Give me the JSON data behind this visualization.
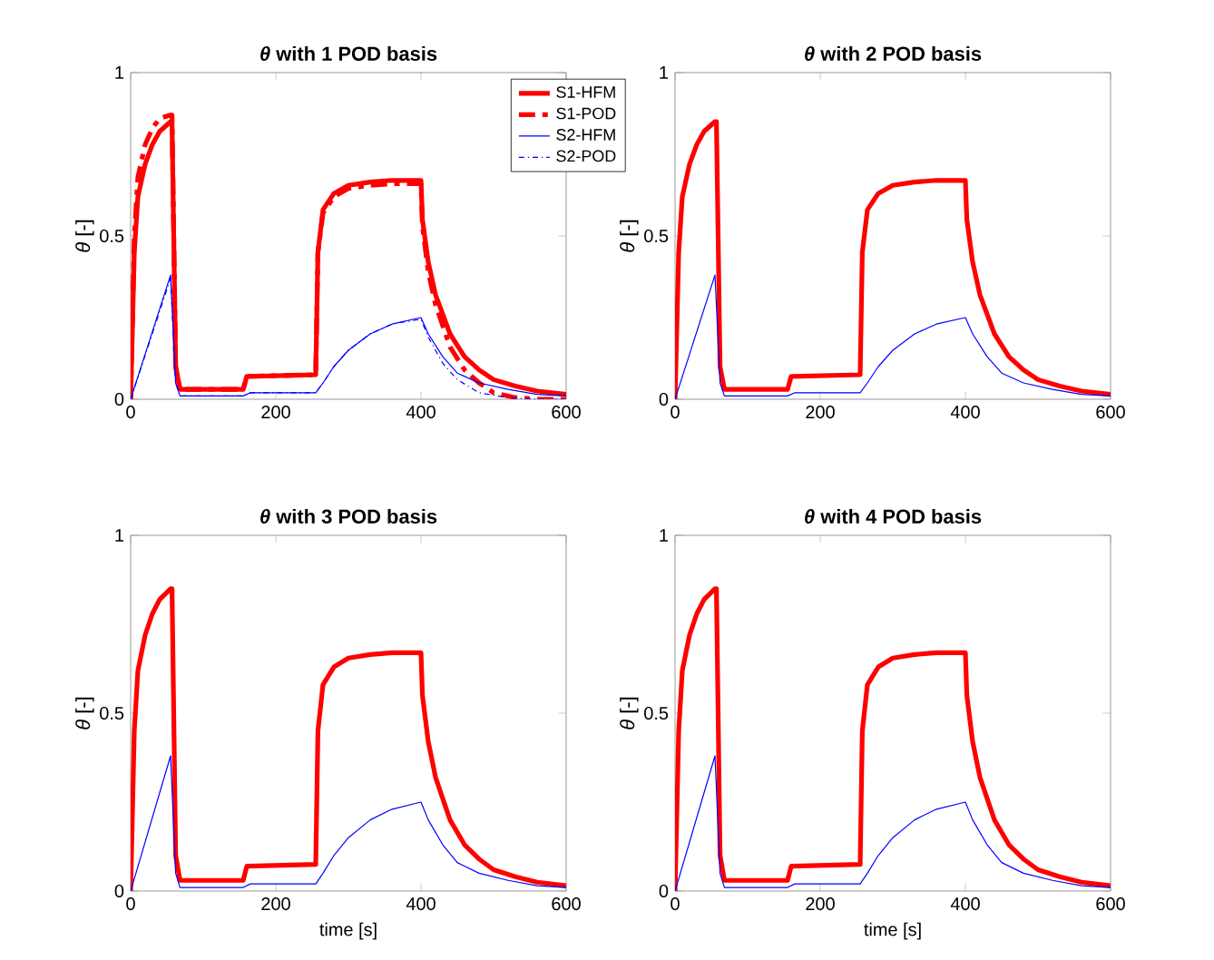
{
  "chart_data": [
    {
      "type": "line",
      "title": "*θ* with 1 POD basis",
      "ylabel": "*θ* [-]",
      "xlim": [
        0,
        600
      ],
      "ylim": [
        0,
        1
      ],
      "xticks": [
        0,
        200,
        400,
        600
      ],
      "yticks": [
        0,
        0.5,
        1
      ],
      "legend": "top right",
      "grid": false,
      "series": [
        {
          "name": "S1-HFM",
          "color": "#ff0000",
          "line_style": "solid",
          "x": [
            0,
            5,
            10,
            20,
            30,
            40,
            55,
            57,
            62,
            68,
            155,
            160,
            255,
            258,
            265,
            280,
            300,
            330,
            360,
            400,
            402,
            410,
            420,
            440,
            460,
            480,
            500,
            530,
            560,
            600
          ],
          "values": [
            0,
            0.45,
            0.62,
            0.72,
            0.78,
            0.82,
            0.85,
            0.85,
            0.1,
            0.03,
            0.03,
            0.07,
            0.075,
            0.45,
            0.58,
            0.63,
            0.655,
            0.665,
            0.67,
            0.67,
            0.55,
            0.42,
            0.32,
            0.2,
            0.13,
            0.09,
            0.06,
            0.04,
            0.025,
            0.015
          ]
        },
        {
          "name": "S1-POD",
          "color": "#ff0000",
          "line_style": "dashed",
          "x": [
            0,
            5,
            10,
            20,
            30,
            40,
            55,
            57,
            62,
            68,
            155,
            160,
            255,
            258,
            265,
            280,
            300,
            330,
            360,
            400,
            402,
            410,
            420,
            440,
            460,
            480,
            500,
            530,
            560,
            600
          ],
          "values": [
            0,
            0.5,
            0.68,
            0.78,
            0.83,
            0.86,
            0.87,
            0.87,
            0.1,
            0.03,
            0.03,
            0.07,
            0.075,
            0.45,
            0.57,
            0.62,
            0.645,
            0.655,
            0.66,
            0.66,
            0.53,
            0.39,
            0.29,
            0.16,
            0.09,
            0.05,
            0.02,
            0.005,
            0,
            0
          ]
        },
        {
          "name": "S2-HFM",
          "color": "#0000ff",
          "line_style": "solid",
          "x": [
            0,
            55,
            62,
            68,
            155,
            165,
            255,
            265,
            280,
            300,
            330,
            360,
            400,
            410,
            430,
            450,
            480,
            520,
            560,
            600
          ],
          "values": [
            0,
            0.38,
            0.05,
            0.01,
            0.01,
            0.02,
            0.02,
            0.05,
            0.1,
            0.15,
            0.2,
            0.23,
            0.25,
            0.2,
            0.13,
            0.08,
            0.05,
            0.03,
            0.015,
            0.01
          ]
        },
        {
          "name": "S2-POD",
          "color": "#0000ff",
          "line_style": "dashed",
          "x": [
            0,
            55,
            62,
            68,
            155,
            165,
            255,
            265,
            280,
            300,
            330,
            360,
            400,
            410,
            430,
            450,
            480,
            520,
            560,
            600
          ],
          "values": [
            0,
            0.37,
            0.05,
            0.01,
            0.01,
            0.02,
            0.02,
            0.05,
            0.1,
            0.15,
            0.2,
            0.23,
            0.245,
            0.19,
            0.11,
            0.06,
            0.02,
            0.005,
            0,
            0
          ]
        }
      ]
    },
    {
      "type": "line",
      "title": "*θ* with 2 POD basis",
      "ylabel": "*θ* [-]",
      "xlim": [
        0,
        600
      ],
      "ylim": [
        0,
        1
      ],
      "xticks": [
        0,
        200,
        400,
        600
      ],
      "yticks": [
        0,
        0.5,
        1
      ],
      "grid": false,
      "series": [
        {
          "color": "#ff0000",
          "line_style": "solid",
          "x": [
            0,
            5,
            10,
            20,
            30,
            40,
            55,
            57,
            62,
            68,
            155,
            160,
            255,
            258,
            265,
            280,
            300,
            330,
            360,
            400,
            402,
            410,
            420,
            440,
            460,
            480,
            500,
            530,
            560,
            600
          ],
          "values": [
            0,
            0.45,
            0.62,
            0.72,
            0.78,
            0.82,
            0.85,
            0.85,
            0.1,
            0.03,
            0.03,
            0.07,
            0.075,
            0.45,
            0.58,
            0.63,
            0.655,
            0.665,
            0.67,
            0.67,
            0.55,
            0.42,
            0.32,
            0.2,
            0.13,
            0.09,
            0.06,
            0.04,
            0.025,
            0.015
          ]
        },
        {
          "color": "#0000ff",
          "line_style": "solid",
          "x": [
            0,
            55,
            62,
            68,
            155,
            165,
            255,
            265,
            280,
            300,
            330,
            360,
            400,
            410,
            430,
            450,
            480,
            520,
            560,
            600
          ],
          "values": [
            0,
            0.38,
            0.05,
            0.01,
            0.01,
            0.02,
            0.02,
            0.05,
            0.1,
            0.15,
            0.2,
            0.23,
            0.25,
            0.2,
            0.13,
            0.08,
            0.05,
            0.03,
            0.015,
            0.01
          ]
        }
      ]
    },
    {
      "type": "line",
      "title": "*θ* with 3 POD basis",
      "xlabel": "time [s]",
      "ylabel": "*θ* [-]",
      "xlim": [
        0,
        600
      ],
      "ylim": [
        0,
        1
      ],
      "xticks": [
        0,
        200,
        400,
        600
      ],
      "yticks": [
        0,
        0.5,
        1
      ],
      "grid": false,
      "series": [
        {
          "color": "#ff0000",
          "line_style": "solid",
          "x": [
            0,
            5,
            10,
            20,
            30,
            40,
            55,
            57,
            62,
            68,
            155,
            160,
            255,
            258,
            265,
            280,
            300,
            330,
            360,
            400,
            402,
            410,
            420,
            440,
            460,
            480,
            500,
            530,
            560,
            600
          ],
          "values": [
            0,
            0.45,
            0.62,
            0.72,
            0.78,
            0.82,
            0.85,
            0.85,
            0.1,
            0.03,
            0.03,
            0.07,
            0.075,
            0.45,
            0.58,
            0.63,
            0.655,
            0.665,
            0.67,
            0.67,
            0.55,
            0.42,
            0.32,
            0.2,
            0.13,
            0.09,
            0.06,
            0.04,
            0.025,
            0.015
          ]
        },
        {
          "color": "#0000ff",
          "line_style": "solid",
          "x": [
            0,
            55,
            62,
            68,
            155,
            165,
            255,
            265,
            280,
            300,
            330,
            360,
            400,
            410,
            430,
            450,
            480,
            520,
            560,
            600
          ],
          "values": [
            0,
            0.38,
            0.05,
            0.01,
            0.01,
            0.02,
            0.02,
            0.05,
            0.1,
            0.15,
            0.2,
            0.23,
            0.25,
            0.2,
            0.13,
            0.08,
            0.05,
            0.03,
            0.015,
            0.01
          ]
        }
      ]
    },
    {
      "type": "line",
      "title": "*θ* with 4 POD basis",
      "xlabel": "time [s]",
      "ylabel": "*θ* [-]",
      "xlim": [
        0,
        600
      ],
      "ylim": [
        0,
        1
      ],
      "xticks": [
        0,
        200,
        400,
        600
      ],
      "yticks": [
        0,
        0.5,
        1
      ],
      "grid": false,
      "series": [
        {
          "color": "#ff0000",
          "line_style": "solid",
          "x": [
            0,
            5,
            10,
            20,
            30,
            40,
            55,
            57,
            62,
            68,
            155,
            160,
            255,
            258,
            265,
            280,
            300,
            330,
            360,
            400,
            402,
            410,
            420,
            440,
            460,
            480,
            500,
            530,
            560,
            600
          ],
          "values": [
            0,
            0.45,
            0.62,
            0.72,
            0.78,
            0.82,
            0.85,
            0.85,
            0.1,
            0.03,
            0.03,
            0.07,
            0.075,
            0.45,
            0.58,
            0.63,
            0.655,
            0.665,
            0.67,
            0.67,
            0.55,
            0.42,
            0.32,
            0.2,
            0.13,
            0.09,
            0.06,
            0.04,
            0.025,
            0.015
          ]
        },
        {
          "color": "#0000ff",
          "line_style": "solid",
          "x": [
            0,
            55,
            62,
            68,
            155,
            165,
            255,
            265,
            280,
            300,
            330,
            360,
            400,
            410,
            430,
            450,
            480,
            520,
            560,
            600
          ],
          "values": [
            0,
            0.38,
            0.05,
            0.01,
            0.01,
            0.02,
            0.02,
            0.05,
            0.1,
            0.15,
            0.2,
            0.23,
            0.25,
            0.2,
            0.13,
            0.08,
            0.05,
            0.03,
            0.015,
            0.01
          ]
        }
      ]
    }
  ]
}
